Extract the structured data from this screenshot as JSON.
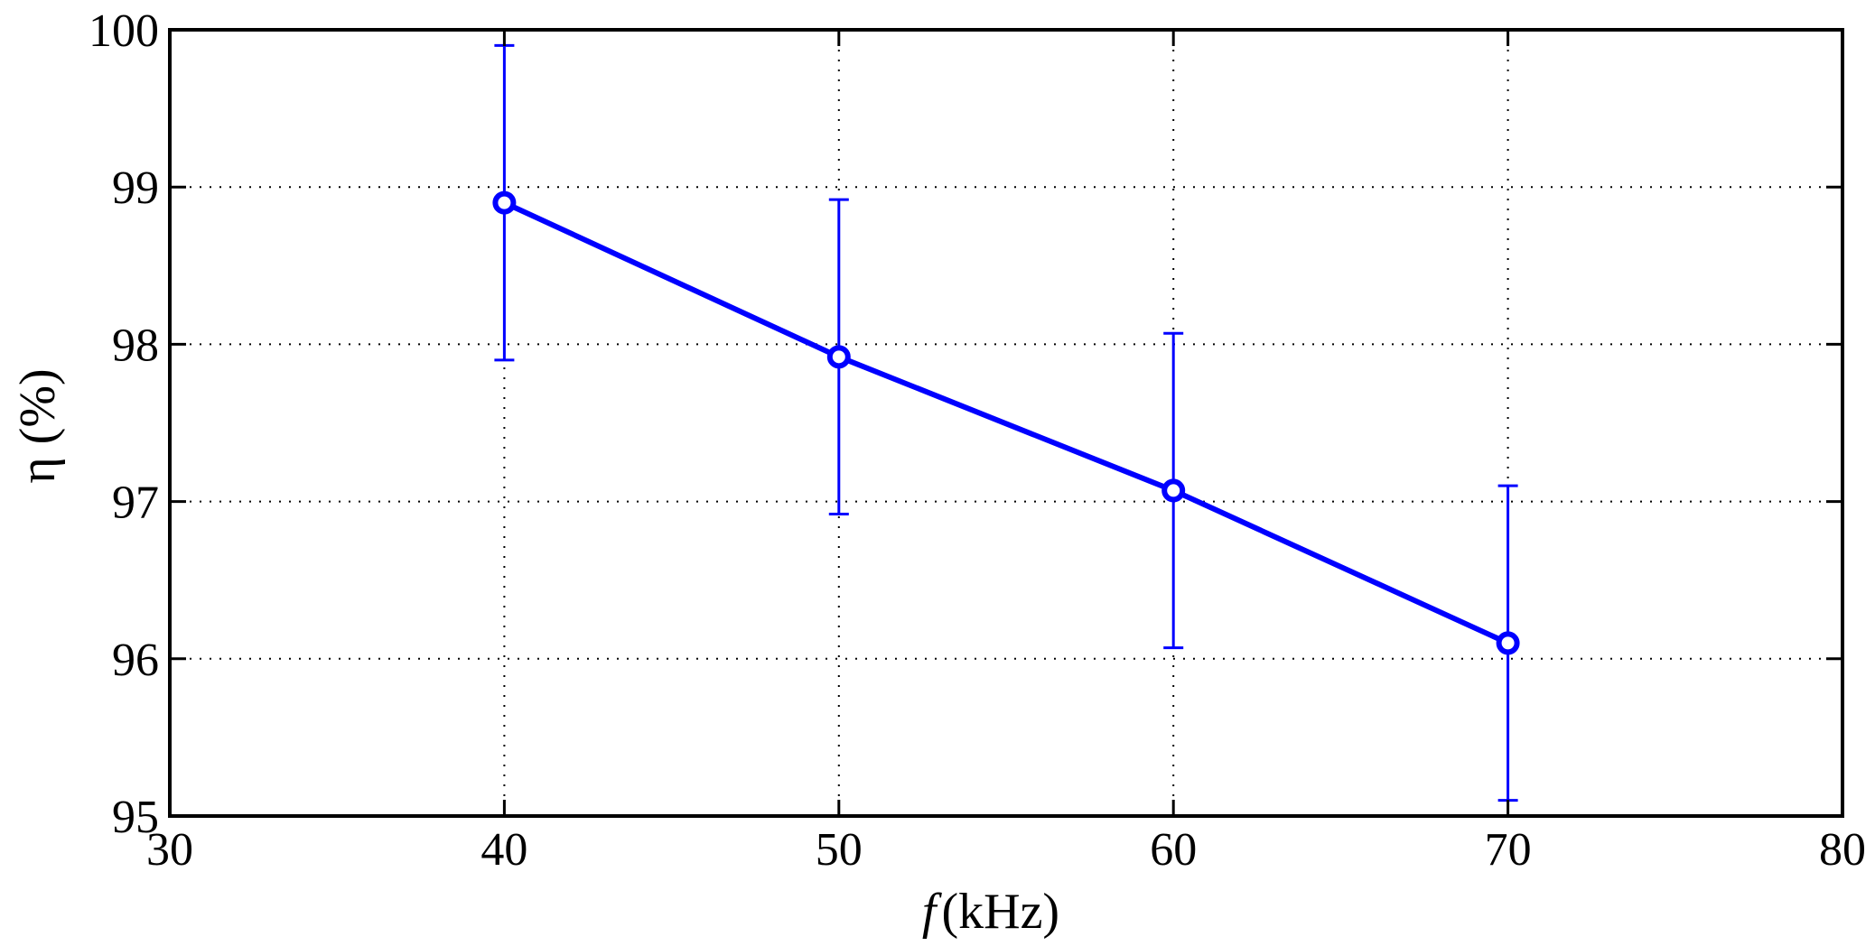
{
  "chart_data": {
    "type": "line",
    "title": "",
    "xlabel_italic": "f",
    "xlabel_rest": "(kHz)",
    "ylabel": "η (%)",
    "xlim": [
      30,
      80
    ],
    "ylim": [
      95,
      100
    ],
    "xticks": [
      30,
      40,
      50,
      60,
      70,
      80
    ],
    "yticks": [
      95,
      96,
      97,
      98,
      99,
      100
    ],
    "grid": true,
    "series": [
      {
        "color": "#0000ff",
        "marker": "circle",
        "points": [
          {
            "x": 40,
            "y": 98.9,
            "err_low": 97.9,
            "err_high": 99.9
          },
          {
            "x": 50,
            "y": 97.92,
            "err_low": 96.92,
            "err_high": 98.92
          },
          {
            "x": 60,
            "y": 97.07,
            "err_low": 96.07,
            "err_high": 98.07
          },
          {
            "x": 70,
            "y": 96.1,
            "err_low": 95.1,
            "err_high": 97.1
          }
        ]
      }
    ]
  }
}
